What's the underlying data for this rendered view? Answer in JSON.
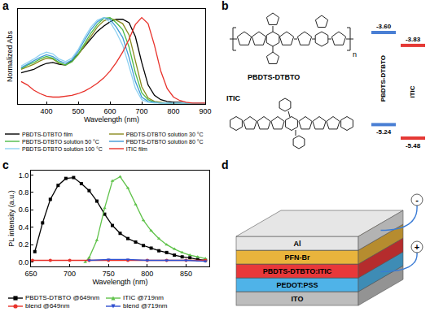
{
  "chart_data": [
    {
      "panel": "a",
      "type": "line",
      "xlabel": "Wavelength (nm)",
      "ylabel": "Normalized Abs",
      "x": [
        320,
        340,
        360,
        380,
        400,
        420,
        440,
        460,
        480,
        500,
        520,
        540,
        560,
        580,
        600,
        620,
        640,
        660,
        680,
        700,
        720,
        740,
        760,
        780,
        800,
        820,
        840,
        860,
        880,
        900
      ],
      "series": [
        {
          "name": "PBDTS-DTBTO film",
          "color": "#000000",
          "values": [
            0.36,
            0.38,
            0.4,
            0.44,
            0.47,
            0.48,
            0.46,
            0.45,
            0.5,
            0.58,
            0.67,
            0.76,
            0.84,
            0.9,
            0.95,
            0.98,
            0.98,
            0.94,
            0.78,
            0.48,
            0.22,
            0.1,
            0.05,
            0.03,
            0.02,
            0.02,
            0.01,
            0.01,
            0.01,
            0.01
          ]
        },
        {
          "name": "PBDTS-DTBTO solution 30 °C",
          "color": "#8a8a1e",
          "values": [
            0.4,
            0.43,
            0.46,
            0.5,
            0.53,
            0.52,
            0.47,
            0.45,
            0.49,
            0.57,
            0.68,
            0.79,
            0.89,
            0.96,
            0.99,
            0.97,
            0.93,
            0.8,
            0.5,
            0.2,
            0.07,
            0.03,
            0.02,
            0.01,
            0.01,
            0.01,
            0.01,
            0.01,
            0.01,
            0.01
          ]
        },
        {
          "name": "PBDTS-DTBTO solution 50 °C",
          "color": "#4cbb47",
          "values": [
            0.41,
            0.45,
            0.48,
            0.52,
            0.55,
            0.53,
            0.48,
            0.45,
            0.49,
            0.58,
            0.7,
            0.82,
            0.92,
            0.99,
            1.0,
            0.94,
            0.86,
            0.66,
            0.36,
            0.13,
            0.05,
            0.02,
            0.01,
            0.01,
            0.01,
            0.01,
            0.01,
            0.01,
            0.01,
            0.01
          ]
        },
        {
          "name": "PBDTS-DTBTO solution 80 °C",
          "color": "#3f9ad6",
          "values": [
            0.42,
            0.46,
            0.5,
            0.54,
            0.57,
            0.55,
            0.5,
            0.47,
            0.51,
            0.61,
            0.74,
            0.86,
            0.95,
            1.0,
            0.98,
            0.89,
            0.77,
            0.54,
            0.26,
            0.08,
            0.03,
            0.02,
            0.01,
            0.01,
            0.01,
            0.01,
            0.01,
            0.01,
            0.01,
            0.01
          ]
        },
        {
          "name": "PBDTS-DTBTO solution 100 °C",
          "color": "#8fd2f2",
          "values": [
            0.44,
            0.48,
            0.52,
            0.57,
            0.6,
            0.58,
            0.52,
            0.49,
            0.53,
            0.63,
            0.77,
            0.89,
            0.97,
            1.0,
            0.95,
            0.83,
            0.68,
            0.44,
            0.18,
            0.05,
            0.02,
            0.01,
            0.01,
            0.01,
            0.01,
            0.01,
            0.01,
            0.01,
            0.01,
            0.01
          ]
        },
        {
          "name": "ITIC film",
          "color": "#e8312a",
          "values": [
            0.26,
            0.22,
            0.16,
            0.12,
            0.09,
            0.08,
            0.08,
            0.09,
            0.1,
            0.12,
            0.15,
            0.19,
            0.24,
            0.3,
            0.38,
            0.48,
            0.6,
            0.75,
            0.92,
            1.0,
            0.93,
            0.68,
            0.38,
            0.18,
            0.08,
            0.04,
            0.02,
            0.01,
            0.01,
            0.01
          ]
        }
      ],
      "xlim": [
        310,
        900
      ],
      "xticks": [
        400,
        500,
        600,
        700,
        800,
        900
      ],
      "ylim": [
        0,
        1.1
      ],
      "tick_labels": "x",
      "grid": false,
      "legend": "bottom"
    },
    {
      "panel": "c",
      "type": "line",
      "xlabel": "Wavelength (nm)",
      "ylabel": "PL intensity (a.u.)",
      "series": [
        {
          "name": "PBDTS-DTBTO @649nm",
          "color": "#000000",
          "marker": "square",
          "x": [
            655,
            665,
            675,
            685,
            695,
            705,
            715,
            725,
            735,
            745,
            755,
            765,
            775,
            785,
            795,
            805,
            815,
            825,
            835,
            845,
            855,
            865,
            875
          ],
          "values": [
            0.12,
            0.45,
            0.72,
            0.88,
            0.96,
            0.97,
            0.9,
            0.82,
            0.7,
            0.55,
            0.42,
            0.33,
            0.27,
            0.23,
            0.19,
            0.16,
            0.13,
            0.11,
            0.08,
            0.06,
            0.05,
            0.03,
            0.02
          ]
        },
        {
          "name": "ITIC @719nm",
          "color": "#5fc24a",
          "marker": "triangle-up",
          "x": [
            720,
            725,
            735,
            745,
            755,
            765,
            775,
            785,
            795,
            805,
            815,
            825,
            835,
            845,
            855,
            865,
            875
          ],
          "values": [
            0.0,
            0.05,
            0.25,
            0.62,
            0.93,
            0.98,
            0.85,
            0.66,
            0.48,
            0.36,
            0.27,
            0.2,
            0.15,
            0.11,
            0.08,
            0.06,
            0.04
          ]
        },
        {
          "name": "blend @649nm",
          "color": "#e8312a",
          "marker": "circle",
          "x": [
            652,
            675,
            700,
            725,
            750,
            775,
            800,
            825,
            850,
            875
          ],
          "values": [
            0.02,
            0.02,
            0.02,
            0.02,
            0.02,
            0.02,
            0.02,
            0.02,
            0.02,
            0.02
          ]
        },
        {
          "name": "blend @719nm",
          "color": "#3050d0",
          "marker": "triangle-down",
          "x": [
            725,
            750,
            775,
            800,
            825,
            850,
            875
          ],
          "values": [
            0.02,
            0.03,
            0.03,
            0.02,
            0.02,
            0.02,
            0.01
          ]
        }
      ],
      "xlim": [
        650,
        880
      ],
      "xticks": [
        650,
        700,
        750,
        800,
        850
      ],
      "ylim": [
        -0.05,
        1.05
      ],
      "yticks": [
        {
          "value": 0,
          "label": "0.0"
        },
        {
          "value": 0.2,
          "label": "0.2"
        },
        {
          "value": 0.4,
          "label": "0.4"
        },
        {
          "value": 0.6,
          "label": "0.6"
        },
        {
          "value": 0.8,
          "label": "0.8"
        },
        {
          "value": 1,
          "label": "1.0"
        }
      ],
      "grid": false,
      "legend": "bottom"
    }
  ],
  "structures": {
    "panel": "b",
    "polymer": {
      "name": "PBDTS-DTBTO",
      "repeat_unit": "n"
    },
    "small_molecule": {
      "name": "ITIC"
    },
    "energy_levels": [
      {
        "name": "PBDTS-DTBTO",
        "color": "#4a7fd4",
        "lumo": {
          "value": -3.6,
          "label": "-3.60"
        },
        "homo": {
          "value": -5.24,
          "label": "-5.24"
        }
      },
      {
        "name": "ITIC",
        "color": "#e53935",
        "lumo": {
          "value": -3.83,
          "label": "-3.83"
        },
        "homo": {
          "value": -5.48,
          "label": "-5.48"
        }
      }
    ]
  },
  "device": {
    "panel": "d",
    "layers": [
      {
        "name": "Al",
        "color": "#e6e6e6"
      },
      {
        "name": "PFN-Br",
        "color": "#e9b43c"
      },
      {
        "name": "PBDTS-DTBTO:ITIC",
        "color": "#e8383a"
      },
      {
        "name": "PEDOT:PSS",
        "color": "#4fb3e8"
      },
      {
        "name": "ITO",
        "color": "#bdbdbd"
      }
    ],
    "negative": "-",
    "positive": "+"
  }
}
